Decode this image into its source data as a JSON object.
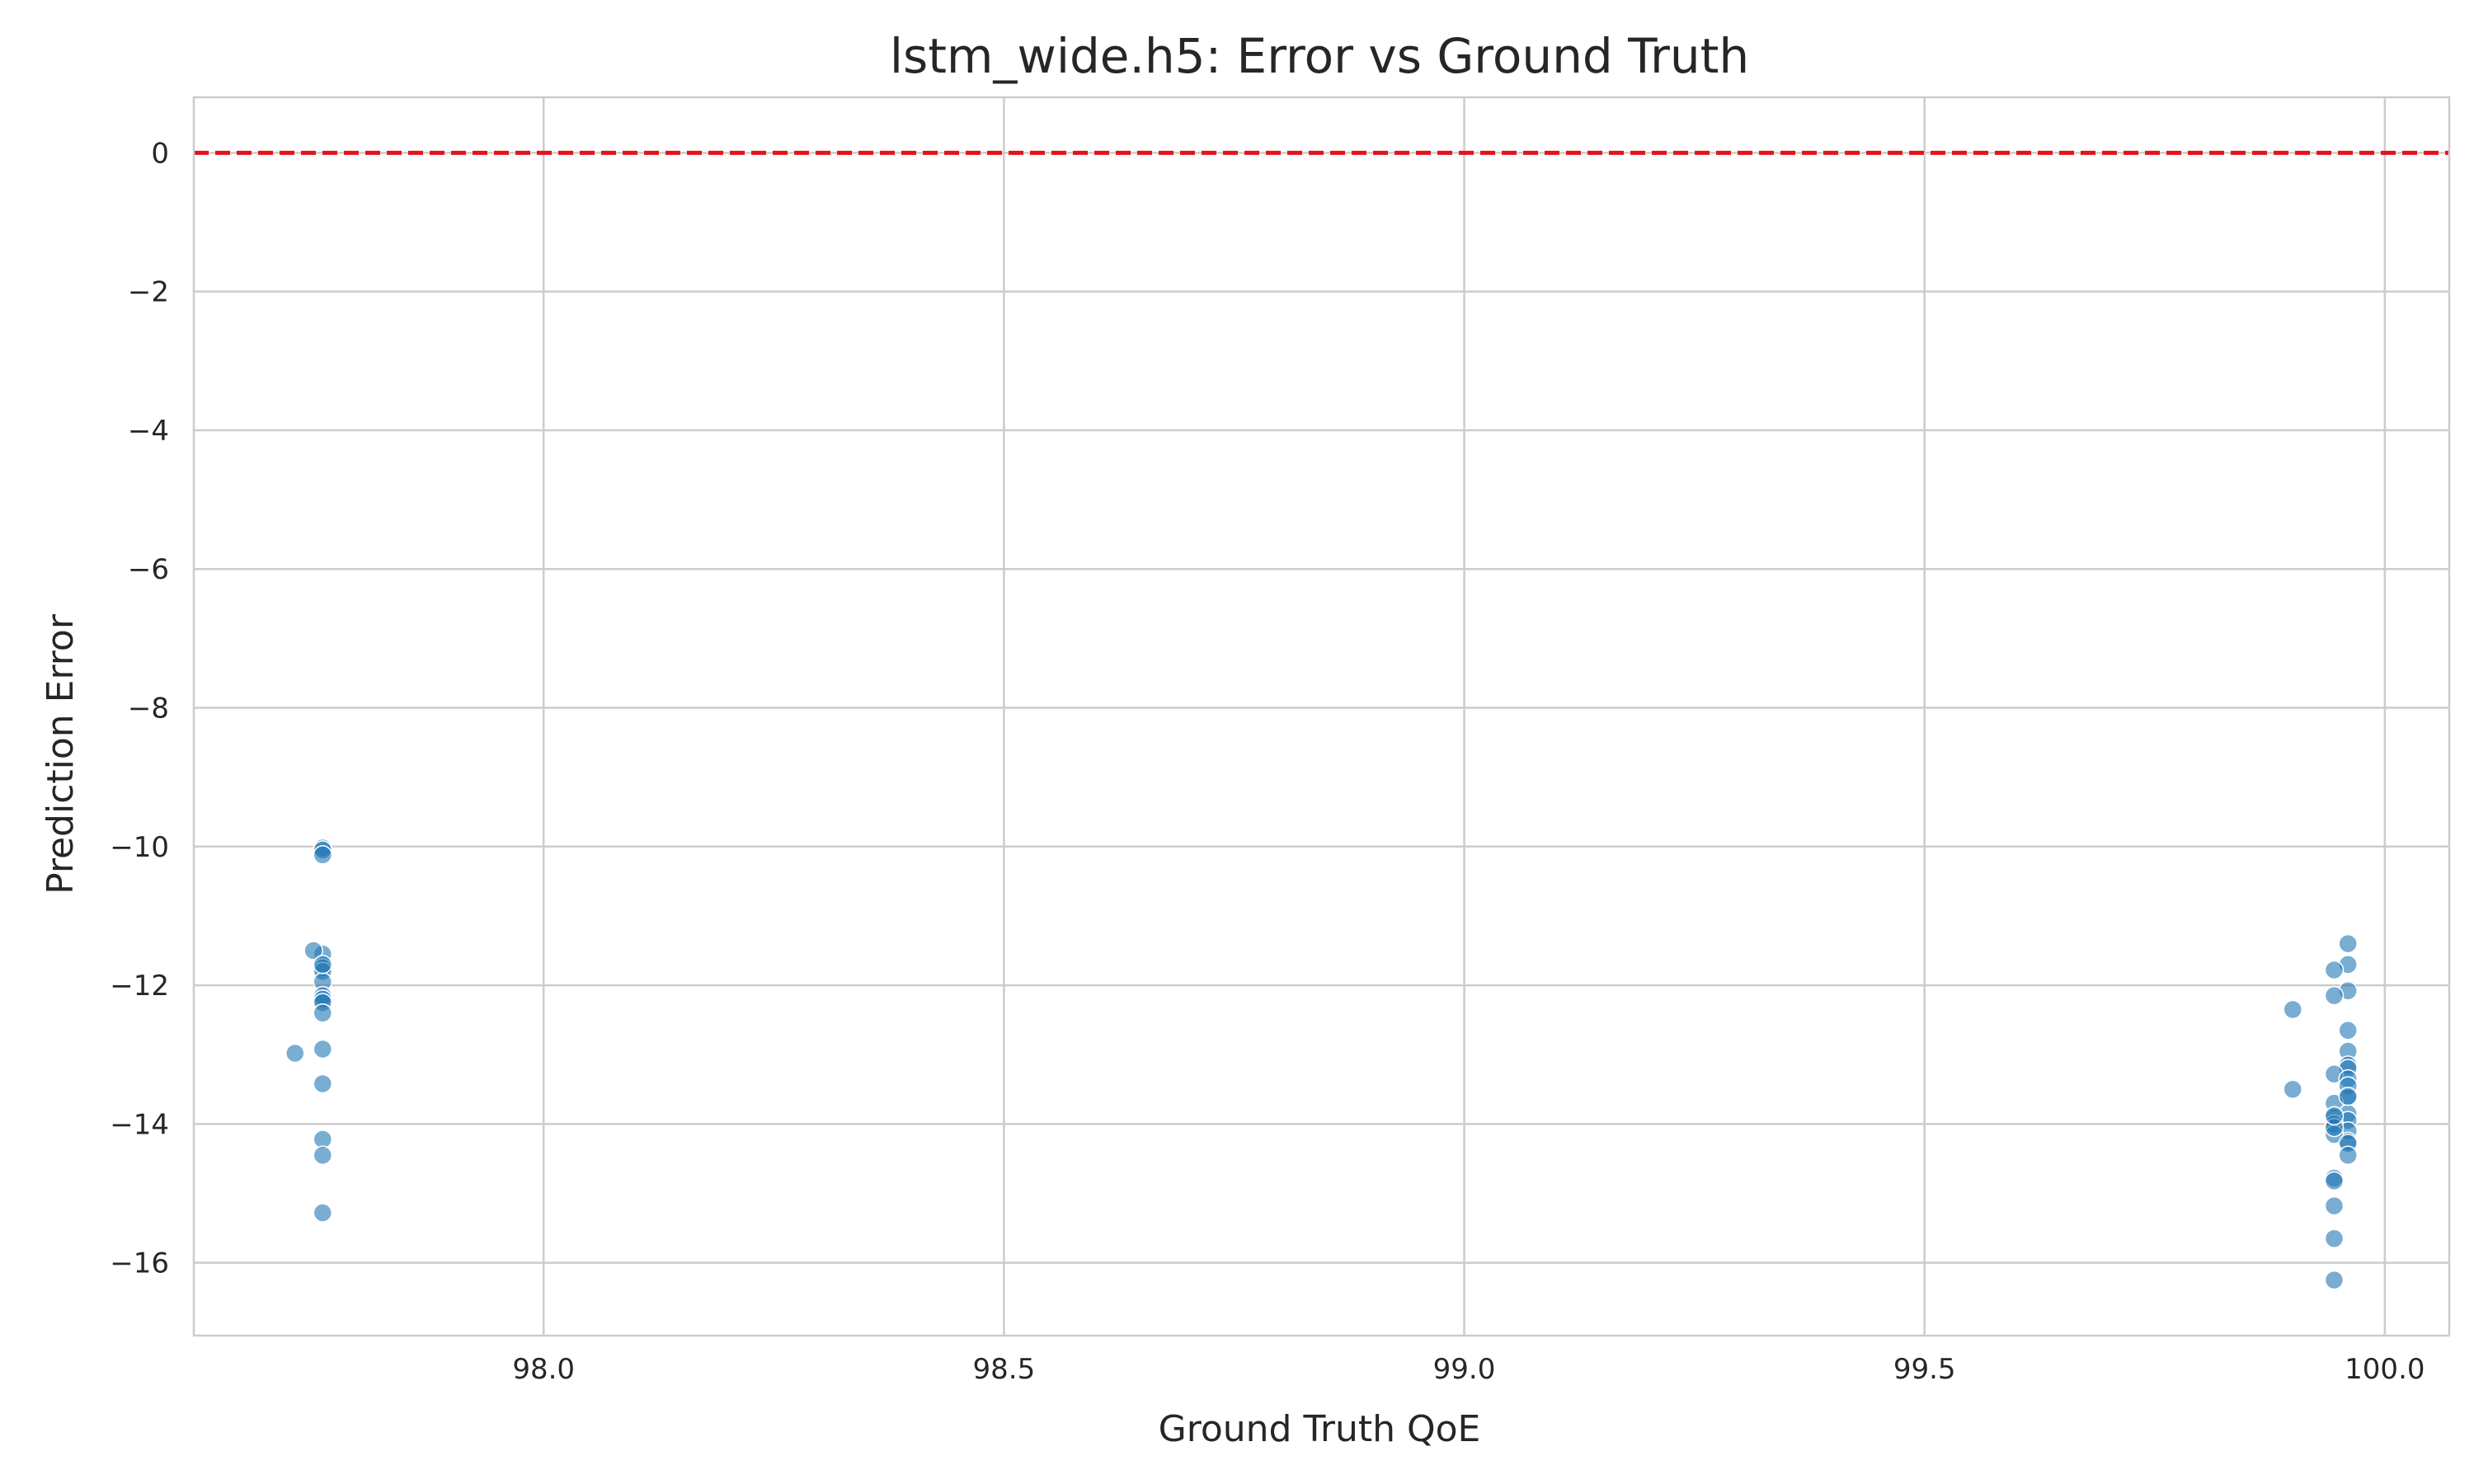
{
  "chart_data": {
    "type": "scatter",
    "title": "lstm_wide.h5: Error vs Ground Truth",
    "xlabel": "Ground Truth QoE",
    "ylabel": "Prediction Error",
    "xlim": [
      97.62,
      100.07
    ],
    "ylim": [
      -17.05,
      0.8
    ],
    "xticks": [
      98.0,
      98.5,
      99.0,
      99.5,
      100.0
    ],
    "xtick_labels": [
      "98.0",
      "98.5",
      "99.0",
      "99.5",
      "100.0"
    ],
    "yticks": [
      0,
      -2,
      -4,
      -6,
      -8,
      -10,
      -12,
      -14,
      -16
    ],
    "ytick_labels": [
      "0",
      "−2",
      "−4",
      "−6",
      "−8",
      "−10",
      "−12",
      "−14",
      "−16"
    ],
    "grid": true,
    "reference_line": {
      "y": 0,
      "style": "dashed",
      "color": "#e8111a"
    },
    "point_color": "#1f77b4",
    "series": [
      {
        "x": [
          97.76,
          97.76,
          97.76,
          97.76,
          97.75,
          97.76,
          97.76,
          97.76,
          97.76,
          97.76,
          97.76,
          97.76,
          97.76,
          97.76,
          97.73,
          97.76,
          97.76,
          97.76,
          97.76,
          99.96,
          99.96,
          99.945,
          99.96,
          99.945,
          99.9,
          99.96,
          99.96,
          99.96,
          99.96,
          99.945,
          99.96,
          99.96,
          99.9,
          99.96,
          99.945,
          99.96,
          99.945,
          99.96,
          99.945,
          99.96,
          99.96,
          99.945,
          99.96,
          99.945,
          99.96,
          99.96,
          99.945,
          99.945,
          99.945,
          99.945,
          99.945,
          99.945
        ],
        "y": [
          -10.02,
          -10.05,
          -10.12,
          -11.55,
          -11.5,
          -11.75,
          -11.8,
          -11.95,
          -12.15,
          -12.2,
          -12.25,
          -12.4,
          -12.92,
          -13.42,
          -12.98,
          -14.22,
          -14.45,
          -15.28,
          -11.7,
          -11.4,
          -11.7,
          -11.78,
          -12.08,
          -12.15,
          -12.35,
          -12.65,
          -12.95,
          -13.15,
          -13.2,
          -13.28,
          -13.35,
          -13.45,
          -13.5,
          -13.62,
          -13.7,
          -13.85,
          -13.9,
          -13.95,
          -14.0,
          -14.1,
          -14.25,
          -14.15,
          -14.28,
          -14.05,
          -14.45,
          -13.6,
          -14.78,
          -14.82,
          -15.18,
          -15.65,
          -16.25,
          -13.88
        ]
      }
    ]
  }
}
